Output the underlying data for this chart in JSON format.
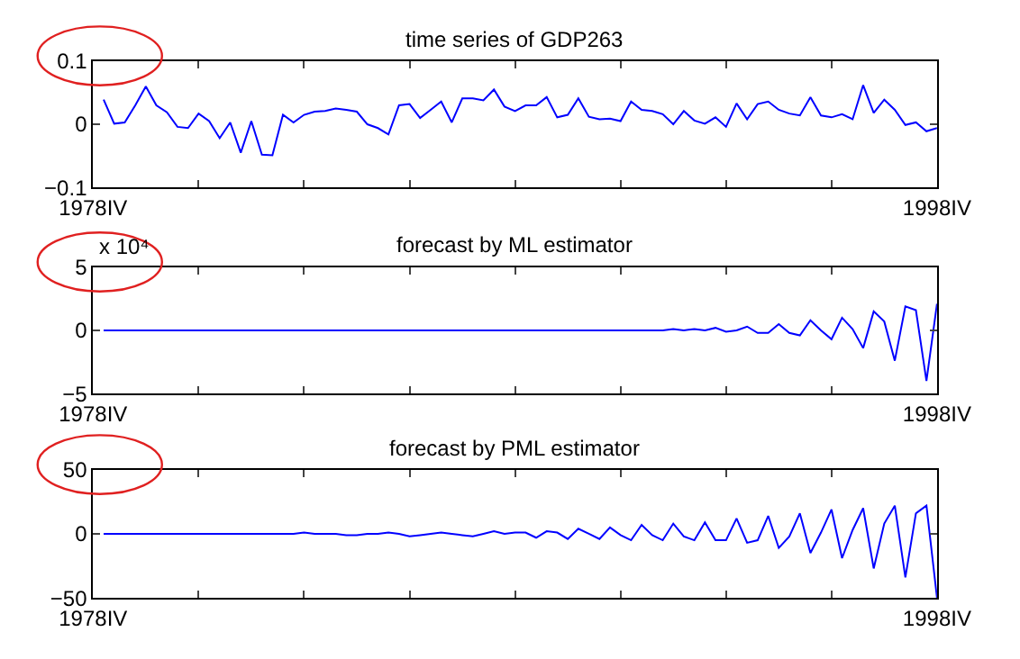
{
  "chart_data": [
    {
      "type": "line",
      "title": "time series of GDP263",
      "categories": [
        "1978IV",
        null,
        null,
        null,
        null,
        null,
        null,
        null,
        null,
        null,
        null,
        null,
        null,
        null,
        null,
        null,
        null,
        null,
        null,
        null,
        null,
        null,
        null,
        null,
        null,
        null,
        null,
        null,
        null,
        null,
        null,
        null,
        null,
        null,
        null,
        null,
        null,
        null,
        null,
        null,
        null,
        null,
        null,
        null,
        null,
        null,
        null,
        null,
        null,
        null,
        null,
        null,
        null,
        null,
        null,
        null,
        null,
        null,
        null,
        null,
        null,
        null,
        null,
        null,
        null,
        null,
        null,
        null,
        null,
        null,
        null,
        null,
        null,
        null,
        null,
        null,
        null,
        null,
        null,
        null,
        "1998IV"
      ],
      "ylim": [
        -0.1,
        0.1
      ],
      "yticks": [
        {
          "value": -0.1,
          "label": "−0.1"
        },
        0,
        0.1
      ],
      "series": [
        {
          "color": "#0000ff",
          "values": [
            null,
            0.039,
            0.001,
            0.003,
            0.03,
            0.06,
            0.03,
            0.019,
            -0.004,
            -0.006,
            0.017,
            0.005,
            -0.022,
            0.003,
            -0.045,
            0.005,
            -0.048,
            -0.049,
            0.015,
            0.003,
            0.015,
            0.02,
            0.021,
            0.025,
            0.023,
            0.02,
            0,
            -0.006,
            -0.016,
            0.03,
            0.032,
            0.01,
            0.023,
            0.036,
            0.003,
            0.041,
            0.041,
            0.038,
            0.055,
            0.028,
            0.021,
            0.03,
            0.03,
            0.043,
            0.011,
            0.015,
            0.041,
            0.012,
            0.008,
            0.009,
            0.005,
            0.036,
            0.023,
            0.021,
            0.016,
            0.0,
            0.021,
            0.006,
            0.001,
            0.011,
            -0.004,
            0.033,
            0.008,
            0.032,
            0.036,
            0.023,
            0.017,
            0.014,
            0.043,
            0.014,
            0.011,
            0.016,
            0.008,
            0.062,
            0.018,
            0.039,
            0.023,
            -0.001,
            0.003,
            -0.011,
            -0.006
          ]
        }
      ]
    },
    {
      "type": "line",
      "title": "forecast by ML estimator",
      "annotations": [
        "x 10⁴"
      ],
      "categories": [
        "1978IV",
        null,
        null,
        null,
        null,
        null,
        null,
        null,
        null,
        null,
        null,
        null,
        null,
        null,
        null,
        null,
        null,
        null,
        null,
        null,
        null,
        null,
        null,
        null,
        null,
        null,
        null,
        null,
        null,
        null,
        null,
        null,
        null,
        null,
        null,
        null,
        null,
        null,
        null,
        null,
        null,
        null,
        null,
        null,
        null,
        null,
        null,
        null,
        null,
        null,
        null,
        null,
        null,
        null,
        null,
        null,
        null,
        null,
        null,
        null,
        null,
        null,
        null,
        null,
        null,
        null,
        null,
        null,
        null,
        null,
        null,
        null,
        null,
        null,
        null,
        null,
        null,
        null,
        null,
        null,
        "1998IV"
      ],
      "ylim": [
        -5,
        5
      ],
      "yticks": [
        {
          "value": -5,
          "label": "−5"
        },
        0,
        5
      ],
      "series": [
        {
          "color": "#0000ff",
          "values": [
            null,
            0,
            0,
            0,
            0,
            0,
            0,
            0,
            0,
            0,
            0,
            0,
            0,
            0,
            0,
            0,
            0,
            0,
            0,
            0,
            0,
            0,
            0,
            0,
            0,
            0,
            0,
            0,
            0,
            0,
            0,
            0,
            0,
            0,
            0,
            0,
            0,
            0,
            0,
            0,
            0,
            0,
            0,
            0,
            0,
            0,
            0,
            0,
            0,
            0,
            0,
            0,
            0,
            0,
            0,
            0.1,
            0,
            0.1,
            0,
            0.2,
            -0.1,
            0,
            0.3,
            -0.2,
            -0.2,
            0.5,
            -0.2,
            -0.4,
            0.8,
            0,
            -0.7,
            1.0,
            0.1,
            -1.4,
            1.5,
            0.7,
            -2.4,
            1.9,
            1.6,
            -4.0,
            2.1
          ]
        }
      ]
    },
    {
      "type": "line",
      "title": "forecast by PML estimator",
      "categories": [
        "1978IV",
        null,
        null,
        null,
        null,
        null,
        null,
        null,
        null,
        null,
        null,
        null,
        null,
        null,
        null,
        null,
        null,
        null,
        null,
        null,
        null,
        null,
        null,
        null,
        null,
        null,
        null,
        null,
        null,
        null,
        null,
        null,
        null,
        null,
        null,
        null,
        null,
        null,
        null,
        null,
        null,
        null,
        null,
        null,
        null,
        null,
        null,
        null,
        null,
        null,
        null,
        null,
        null,
        null,
        null,
        null,
        null,
        null,
        null,
        null,
        null,
        null,
        null,
        null,
        null,
        null,
        null,
        null,
        null,
        null,
        null,
        null,
        null,
        null,
        null,
        null,
        null,
        null,
        null,
        null,
        "1998IV"
      ],
      "ylim": [
        -50,
        50
      ],
      "yticks": [
        {
          "value": -50,
          "label": "−50"
        },
        0,
        50
      ],
      "series": [
        {
          "color": "#0000ff",
          "values": [
            null,
            0,
            0,
            0,
            0,
            0,
            0,
            0,
            0,
            0,
            0,
            0,
            0,
            0,
            0,
            0,
            0,
            0,
            0,
            0,
            1,
            0,
            0,
            0,
            -1,
            -1,
            0,
            0,
            1,
            0,
            -2,
            -1,
            0,
            1,
            0,
            -1,
            -2,
            0,
            2,
            0,
            1,
            1,
            -3,
            2,
            1,
            -4,
            4,
            0,
            -4,
            5,
            -1,
            -5,
            7,
            -1,
            -5,
            8,
            -2,
            -5,
            9,
            -5,
            -5,
            12,
            -7,
            -5,
            14,
            -11,
            -2,
            16,
            -15,
            1,
            19,
            -19,
            3,
            20,
            -27,
            8,
            22,
            -34,
            16,
            22,
            -50
          ]
        }
      ]
    }
  ]
}
